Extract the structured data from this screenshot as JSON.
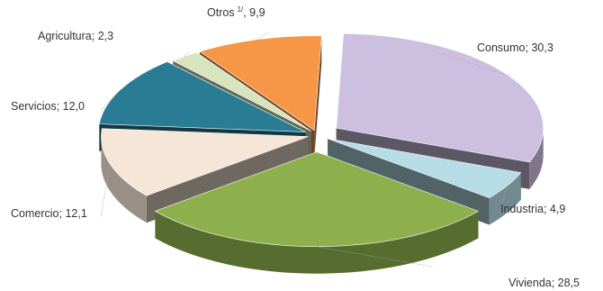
{
  "chart_data": {
    "type": "pie",
    "style": "3d-exploded",
    "slices": [
      {
        "label": "Consumo",
        "value": 30.3,
        "value_text": "30,3",
        "color": "#cdbfe0"
      },
      {
        "label": "Industria",
        "value": 4.9,
        "value_text": "4,9",
        "color": "#b6dde6"
      },
      {
        "label": "Vivienda",
        "value": 28.5,
        "value_text": "28,5",
        "color": "#8db04c"
      },
      {
        "label": "Comercio",
        "value": 12.1,
        "value_text": "12,1",
        "color": "#f6e6d8"
      },
      {
        "label": "Servicios",
        "value": 12.0,
        "value_text": "12,0",
        "color": "#2a7c94"
      },
      {
        "label": "Agricultura",
        "value": 2.3,
        "value_text": "2,3",
        "color": "#d7e4bd"
      },
      {
        "label": "Otros",
        "label_sup": "1/",
        "value": 9.9,
        "value_text": "9,9",
        "color": "#f79646"
      }
    ]
  }
}
